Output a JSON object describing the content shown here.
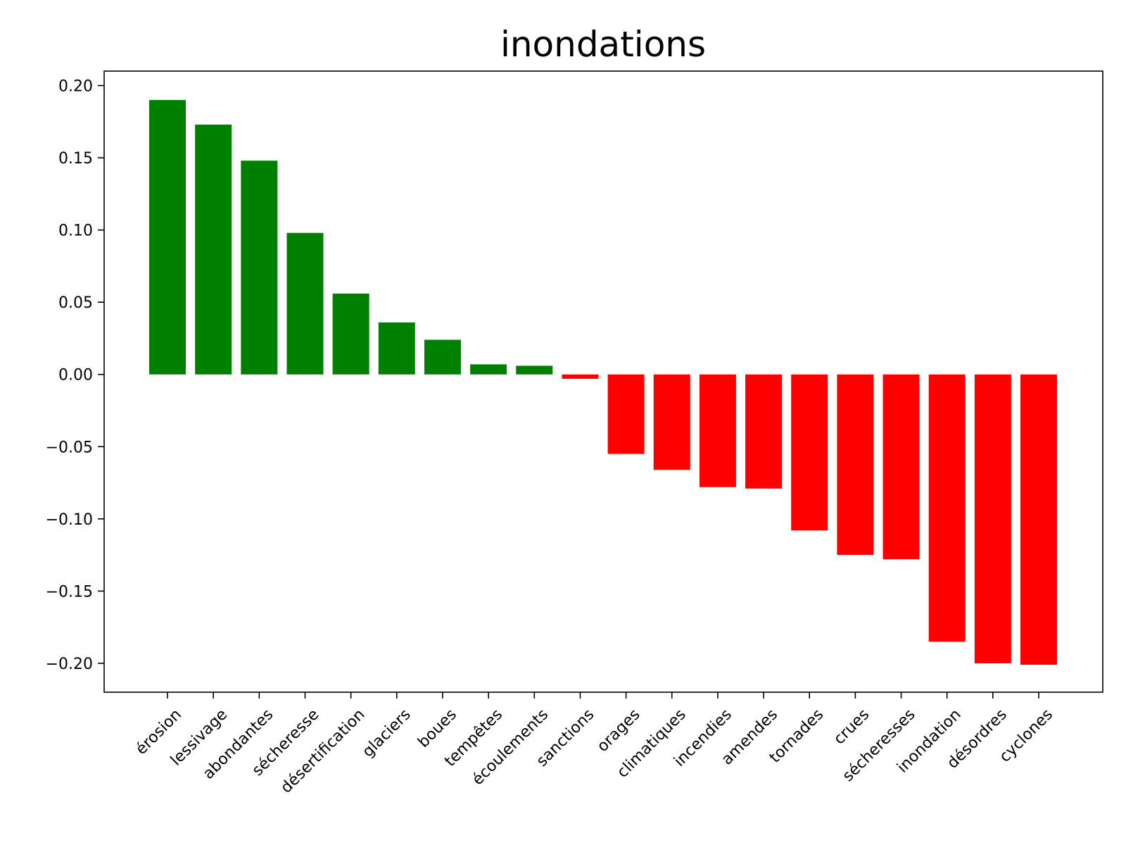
{
  "chart_data": {
    "type": "bar",
    "title": "inondations",
    "xlabel": "",
    "ylabel": "",
    "ylim": [
      -0.22,
      0.21
    ],
    "yticks": [
      0.2,
      0.15,
      0.1,
      0.05,
      0.0,
      -0.05,
      -0.1,
      -0.15,
      -0.2
    ],
    "ytick_labels": [
      "0.20",
      "0.15",
      "0.10",
      "0.05",
      "0.00",
      "−0.05",
      "−0.10",
      "−0.15",
      "−0.20"
    ],
    "grid": false,
    "legend": "none",
    "categories": [
      "érosion",
      "lessivage",
      "abondantes",
      "sécheresse",
      "désertification",
      "glaciers",
      "boues",
      "tempêtes",
      "écoulements",
      "sanctions",
      "orages",
      "climatiques",
      "incendies",
      "amendes",
      "tornades",
      "crues",
      "sécheresses",
      "inondation",
      "désordres",
      "cyclones"
    ],
    "values": [
      0.19,
      0.173,
      0.148,
      0.098,
      0.056,
      0.036,
      0.024,
      0.007,
      0.006,
      -0.003,
      -0.055,
      -0.066,
      -0.078,
      -0.079,
      -0.108,
      -0.125,
      -0.128,
      -0.185,
      -0.2,
      -0.201
    ],
    "colors": {
      "positive": "#008000",
      "negative": "#ff0000"
    }
  }
}
